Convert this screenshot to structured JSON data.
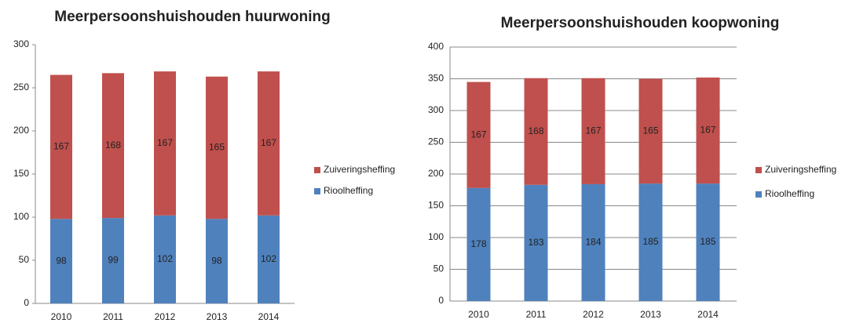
{
  "chart_data": [
    {
      "type": "stacked_bar",
      "title": "Meerpersoonshuishouden huurwoning",
      "categories": [
        "2010",
        "2011",
        "2012",
        "2013",
        "2014"
      ],
      "series": [
        {
          "name": "Rioolheffing",
          "color": "#4f81bd",
          "values": [
            98,
            99,
            102,
            98,
            102
          ]
        },
        {
          "name": "Zuiveringsheffing",
          "color": "#c0504d",
          "values": [
            167,
            168,
            167,
            165,
            167
          ]
        }
      ],
      "ylim": [
        0,
        300
      ],
      "yticks": [
        0,
        50,
        100,
        150,
        200,
        250,
        300
      ],
      "grid": false,
      "legend": "right"
    },
    {
      "type": "stacked_bar",
      "title": "Meerpersoonshuishouden koopwoning",
      "categories": [
        "2010",
        "2011",
        "2012",
        "2013",
        "2014"
      ],
      "series": [
        {
          "name": "Rioolheffing",
          "color": "#4f81bd",
          "values": [
            178,
            183,
            184,
            185,
            185
          ]
        },
        {
          "name": "Zuiveringsheffing",
          "color": "#c0504d",
          "values": [
            167,
            168,
            167,
            165,
            167
          ]
        }
      ],
      "ylim": [
        0,
        400
      ],
      "yticks": [
        0,
        50,
        100,
        150,
        200,
        250,
        300,
        350,
        400
      ],
      "grid": true,
      "legend": "right"
    }
  ]
}
